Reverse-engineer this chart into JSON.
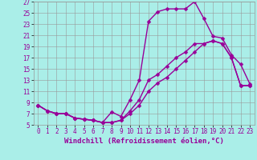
{
  "xlabel": "Windchill (Refroidissement éolien,°C)",
  "background_color": "#aaeee8",
  "grid_color": "#999999",
  "line_color": "#990099",
  "xlim": [
    -0.5,
    23.5
  ],
  "ylim": [
    5,
    27
  ],
  "yticks": [
    5,
    7,
    9,
    11,
    13,
    15,
    17,
    19,
    21,
    23,
    25,
    27
  ],
  "xticks": [
    0,
    1,
    2,
    3,
    4,
    5,
    6,
    7,
    8,
    9,
    10,
    11,
    12,
    13,
    14,
    15,
    16,
    17,
    18,
    19,
    20,
    21,
    22,
    23
  ],
  "line1_x": [
    0,
    1,
    2,
    3,
    4,
    5,
    6,
    7,
    8,
    9,
    10,
    11,
    12,
    13,
    14,
    15,
    16,
    17,
    18,
    19,
    20,
    21,
    22,
    23
  ],
  "line1_y": [
    8.5,
    7.5,
    7.0,
    7.0,
    6.2,
    6.0,
    5.8,
    5.4,
    7.3,
    6.5,
    9.5,
    13.0,
    23.5,
    25.2,
    25.7,
    25.7,
    25.7,
    27.0,
    24.0,
    20.8,
    20.5,
    17.5,
    15.8,
    12.3
  ],
  "line2_x": [
    0,
    1,
    2,
    3,
    4,
    5,
    6,
    7,
    8,
    9,
    10,
    11,
    12,
    13,
    14,
    15,
    16,
    17,
    18,
    19,
    20,
    21,
    22,
    23
  ],
  "line2_y": [
    8.5,
    7.5,
    7.0,
    7.0,
    6.2,
    6.0,
    5.8,
    5.4,
    5.4,
    5.8,
    7.5,
    9.5,
    13.0,
    14.0,
    15.5,
    17.0,
    18.0,
    19.5,
    19.5,
    20.0,
    19.5,
    17.0,
    12.0,
    12.0
  ],
  "line3_x": [
    0,
    1,
    2,
    3,
    4,
    5,
    6,
    7,
    8,
    9,
    10,
    11,
    12,
    13,
    14,
    15,
    16,
    17,
    18,
    19,
    20,
    21,
    22,
    23
  ],
  "line3_y": [
    8.5,
    7.5,
    7.0,
    7.0,
    6.2,
    6.0,
    5.8,
    5.4,
    5.4,
    5.8,
    7.0,
    8.5,
    11.0,
    12.5,
    13.5,
    15.0,
    16.5,
    18.0,
    19.5,
    20.0,
    19.5,
    17.0,
    12.0,
    12.0
  ],
  "marker": "D",
  "markersize": 2.5,
  "linewidth": 1.0,
  "tick_fontsize": 5.5,
  "xlabel_fontsize": 6.5
}
